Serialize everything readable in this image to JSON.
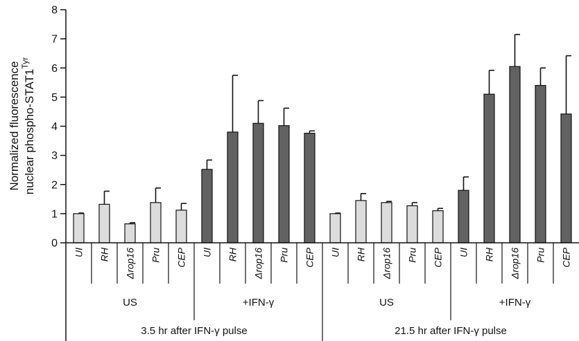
{
  "chart_data": {
    "type": "bar",
    "ylabel_lines": [
      "Normalized fluorescence",
      "nuclear phospho-STAT1"
    ],
    "ylabel_sup": "Tyr",
    "ylim": [
      0,
      8
    ],
    "yticks": [
      0,
      1,
      2,
      3,
      4,
      5,
      6,
      7,
      8
    ],
    "categories": [
      "UI",
      "RH",
      "Δrop16",
      "Pru",
      "CEP",
      "UI",
      "RH",
      "Δrop16",
      "Pru",
      "CEP",
      "UI",
      "RH",
      "Δrop16",
      "Pru",
      "CEP",
      "UI",
      "RH",
      "Δrop16",
      "Pru",
      "CEP"
    ],
    "values": [
      1.0,
      1.32,
      0.65,
      1.38,
      1.12,
      2.52,
      3.8,
      4.1,
      4.02,
      3.76,
      1.0,
      1.45,
      1.38,
      1.27,
      1.1,
      1.8,
      5.1,
      6.05,
      5.4,
      4.42
    ],
    "errors": [
      0.02,
      0.45,
      0.04,
      0.5,
      0.23,
      0.32,
      1.95,
      0.78,
      0.6,
      0.08,
      0.02,
      0.24,
      0.04,
      0.11,
      0.08,
      0.46,
      0.82,
      1.1,
      0.6,
      2.0
    ],
    "treatment_groups": [
      {
        "label": "US",
        "fill": "light"
      },
      {
        "label": "+IFN-γ",
        "fill": "dark"
      },
      {
        "label": "US",
        "fill": "light"
      },
      {
        "label": "+IFN-γ",
        "fill": "dark"
      }
    ],
    "time_groups": [
      {
        "label": "3.5 hr after IFN-γ pulse"
      },
      {
        "label": "21.5 hr after IFN-γ pulse"
      }
    ],
    "colors": {
      "light": "#dcdcdc",
      "dark": "#626262",
      "stroke": "#111111"
    }
  }
}
